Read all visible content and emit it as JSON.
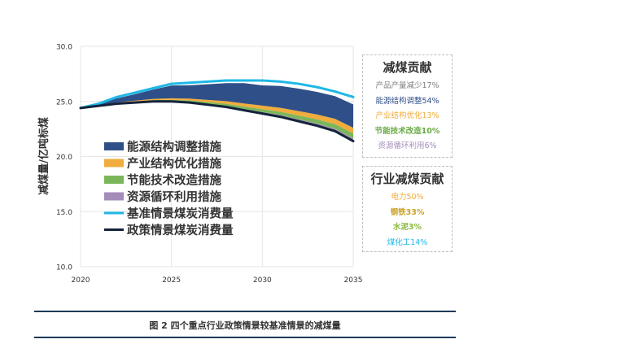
{
  "chart_data": {
    "type": "area",
    "ylabel": "减煤量/亿吨标煤",
    "xlabel": "",
    "x": [
      2020,
      2021,
      2022,
      2023,
      2024,
      2025,
      2026,
      2027,
      2028,
      2029,
      2030,
      2031,
      2032,
      2033,
      2034,
      2035
    ],
    "xticks": [
      "2020",
      "2025",
      "2030",
      "2035"
    ],
    "yticks": [
      "10.0",
      "15.0",
      "20.0",
      "25.0",
      "30.0"
    ],
    "xlim": [
      2020,
      2035
    ],
    "ylim": [
      10,
      30
    ],
    "baseline": {
      "name": "基准情景煤炭消费量",
      "color": "#1fb8e6",
      "values": [
        24.4,
        24.8,
        25.4,
        25.8,
        26.2,
        26.6,
        26.7,
        26.8,
        26.9,
        26.9,
        26.9,
        26.8,
        26.6,
        26.3,
        25.9,
        25.4
      ]
    },
    "policy": {
      "name": "政策情景煤炭消费量",
      "color": "#14233c",
      "values": [
        24.4,
        24.6,
        24.8,
        24.9,
        25.0,
        25.0,
        24.9,
        24.7,
        24.5,
        24.2,
        23.9,
        23.6,
        23.2,
        22.8,
        22.3,
        21.4
      ]
    },
    "series": [
      {
        "name": "资源循环利用措施",
        "color": "#a48bb8",
        "values": [
          0.0,
          0.01,
          0.02,
          0.03,
          0.04,
          0.05,
          0.06,
          0.08,
          0.1,
          0.12,
          0.14,
          0.16,
          0.18,
          0.2,
          0.22,
          0.24
        ]
      },
      {
        "name": "节能技术改造措施",
        "color": "#7cb65a",
        "values": [
          0.0,
          0.02,
          0.04,
          0.06,
          0.08,
          0.1,
          0.13,
          0.16,
          0.19,
          0.22,
          0.26,
          0.3,
          0.34,
          0.38,
          0.42,
          0.45
        ]
      },
      {
        "name": "产业结构优化措施",
        "color": "#f0ac3c",
        "values": [
          0.0,
          0.02,
          0.05,
          0.08,
          0.11,
          0.14,
          0.17,
          0.2,
          0.24,
          0.28,
          0.32,
          0.36,
          0.4,
          0.44,
          0.48,
          0.52
        ]
      },
      {
        "name": "能源结构调整措施",
        "color": "#2f4f88",
        "values": [
          0.0,
          0.14,
          0.37,
          0.59,
          0.85,
          1.16,
          1.21,
          1.42,
          1.63,
          1.84,
          1.84,
          1.98,
          2.04,
          2.05,
          2.06,
          2.12
        ]
      }
    ],
    "legend": [
      {
        "label": "能源结构调整措施",
        "color": "#2f4f88",
        "kind": "box"
      },
      {
        "label": "产业结构优化措施",
        "color": "#f0ac3c",
        "kind": "box"
      },
      {
        "label": "节能技术改造措施",
        "color": "#7cb65a",
        "kind": "box"
      },
      {
        "label": "资源循环利用措施",
        "color": "#a48bb8",
        "kind": "box"
      },
      {
        "label": "基准情景煤炭消费量",
        "color": "#1fb8e6",
        "kind": "line"
      },
      {
        "label": "政策情景煤炭消费量",
        "color": "#14233c",
        "kind": "line"
      }
    ],
    "legend_position": "inside-left"
  },
  "box_measures": {
    "title": "减煤贡献",
    "items": [
      {
        "text": "产品产量减少17%",
        "color": "#7f7f7f"
      },
      {
        "text": "能源结构调整54%",
        "color": "#2f4f88"
      },
      {
        "text": "产业结构优化13%",
        "color": "#f0ac3c"
      },
      {
        "text": "节能技术改造10%",
        "color": "#6aaa45"
      },
      {
        "text": "资源循环利用6%",
        "color": "#a48bb8"
      }
    ]
  },
  "box_industry": {
    "title": "行业减煤贡献",
    "items": [
      {
        "text": "电力50%",
        "color": "#f0ac3c"
      },
      {
        "text": "钢铁33%",
        "color": "#c9a227"
      },
      {
        "text": "水泥3%",
        "color": "#8ab83c"
      },
      {
        "text": "煤化工14%",
        "color": "#1fb8e6"
      }
    ]
  },
  "caption": "图 2  四个重点行业政策情景较基准情景的减煤量"
}
